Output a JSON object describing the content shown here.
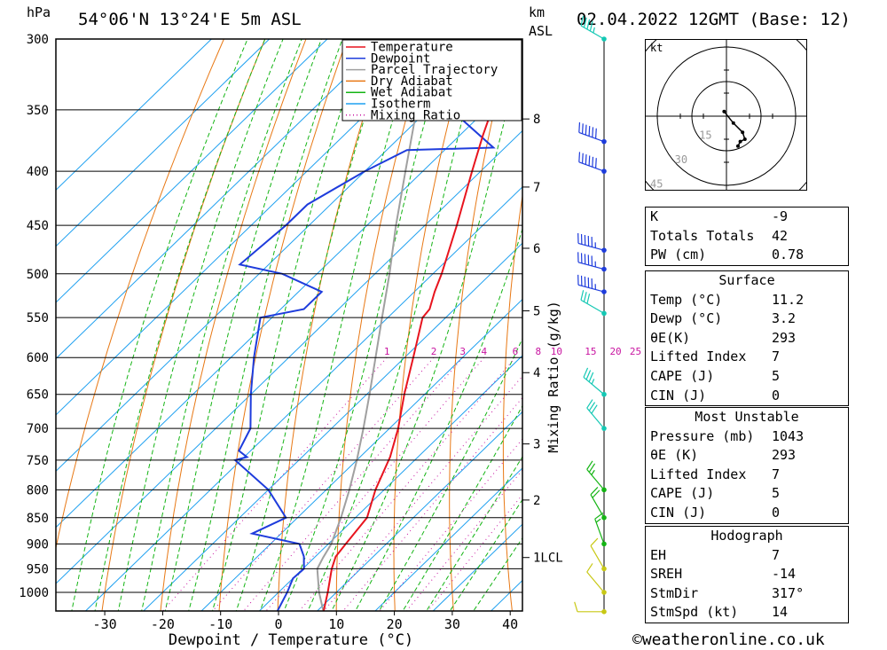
{
  "header": {
    "location": "54°06'N 13°24'E 5m ASL",
    "datetime": "02.04.2022 12GMT (Base: 12)",
    "pressure_unit": "hPa",
    "height_unit": "km",
    "height_unit2": "ASL"
  },
  "chart_data": {
    "type": "skew-t",
    "xlabel": "Dewpoint / Temperature (°C)",
    "ylabel": "Mixing Ratio (g/kg)",
    "x_ticks": [
      -30,
      -20,
      -10,
      0,
      10,
      20,
      30,
      40
    ],
    "pressure_levels": [
      300,
      350,
      400,
      450,
      500,
      550,
      600,
      650,
      700,
      750,
      800,
      850,
      900,
      950,
      1000
    ],
    "km_ticks": [
      {
        "label": "8",
        "p": 357
      },
      {
        "label": "7",
        "p": 414
      },
      {
        "label": "6",
        "p": 473
      },
      {
        "label": "5",
        "p": 542
      },
      {
        "label": "4",
        "p": 620
      },
      {
        "label": "3",
        "p": 724
      },
      {
        "label": "2",
        "p": 818
      },
      {
        "label": "1LCL",
        "p": 927
      }
    ],
    "mixing_ratio_labels": [
      "1",
      "2",
      "3",
      "4",
      "6",
      "8",
      "10",
      "15",
      "20",
      "25"
    ],
    "legend": [
      "Temperature",
      "Dewpoint",
      "Parcel Trajectory",
      "Dry Adiabat",
      "Wet Adiabat",
      "Isotherm",
      "Mixing Ratio"
    ],
    "colors": {
      "temperature": "#e8141e",
      "dewpoint": "#1e3cdc",
      "parcel": "#a0a0a0",
      "dry_adiabat": "#e87814",
      "wet_adiabat": "#14b414",
      "isotherm": "#1ea0f0",
      "mixing_ratio": "#c814a0"
    },
    "series": [
      {
        "name": "Temperature",
        "points": [
          [
            1043,
            11.2
          ],
          [
            1000,
            8.5
          ],
          [
            950,
            5.0
          ],
          [
            925,
            3.5
          ],
          [
            900,
            3.0
          ],
          [
            850,
            2.0
          ],
          [
            800,
            -1.5
          ],
          [
            750,
            -4.5
          ],
          [
            745,
            -4.8
          ],
          [
            700,
            -8.5
          ],
          [
            650,
            -13.5
          ],
          [
            600,
            -18.5
          ],
          [
            550,
            -24.0
          ],
          [
            540,
            -24.3
          ],
          [
            520,
            -26.5
          ],
          [
            500,
            -28.5
          ],
          [
            450,
            -34.5
          ],
          [
            400,
            -41.5
          ],
          [
            370,
            -46.0
          ],
          [
            350,
            -49.0
          ],
          [
            300,
            -56.5
          ]
        ]
      },
      {
        "name": "Dewpoint",
        "points": [
          [
            1043,
            3.2
          ],
          [
            1000,
            1.5
          ],
          [
            970,
            0.0
          ],
          [
            950,
            0.2
          ],
          [
            925,
            -2.0
          ],
          [
            900,
            -5.0
          ],
          [
            880,
            -15.0
          ],
          [
            850,
            -12.0
          ],
          [
            800,
            -20.0
          ],
          [
            750,
            -31.0
          ],
          [
            745,
            -29.5
          ],
          [
            735,
            -32.0
          ],
          [
            700,
            -34.0
          ],
          [
            650,
            -40.0
          ],
          [
            600,
            -46.0
          ],
          [
            550,
            -52.0
          ],
          [
            540,
            -46.0
          ],
          [
            520,
            -46.0
          ],
          [
            500,
            -56.0
          ],
          [
            490,
            -65.0
          ],
          [
            450,
            -64.0
          ],
          [
            430,
            -64.0
          ],
          [
            400,
            -60.0
          ],
          [
            382,
            -56.5
          ],
          [
            380,
            -42.0
          ],
          [
            350,
            -56.0
          ],
          [
            300,
            -66.5
          ]
        ]
      },
      {
        "name": "Parcel Trajectory",
        "points": [
          [
            1043,
            11.2
          ],
          [
            1000,
            7.0
          ],
          [
            950,
            2.5
          ],
          [
            927,
            1.5
          ],
          [
            900,
            0.5
          ],
          [
            850,
            -2.5
          ],
          [
            800,
            -6.0
          ],
          [
            750,
            -10.0
          ],
          [
            700,
            -14.5
          ],
          [
            650,
            -19.5
          ],
          [
            600,
            -25.0
          ],
          [
            550,
            -31.0
          ],
          [
            500,
            -37.5
          ],
          [
            450,
            -45.0
          ],
          [
            400,
            -53.0
          ],
          [
            350,
            -62.0
          ],
          [
            300,
            -72.0
          ]
        ]
      }
    ],
    "wind_barbs": [
      {
        "p": 300,
        "dir": 300,
        "kt": 45
      },
      {
        "p": 375,
        "dir": 290,
        "kt": 60
      },
      {
        "p": 400,
        "dir": 290,
        "kt": 60
      },
      {
        "p": 475,
        "dir": 285,
        "kt": 55
      },
      {
        "p": 495,
        "dir": 285,
        "kt": 55
      },
      {
        "p": 520,
        "dir": 285,
        "kt": 55
      },
      {
        "p": 545,
        "dir": 300,
        "kt": 30
      },
      {
        "p": 650,
        "dir": 310,
        "kt": 35
      },
      {
        "p": 700,
        "dir": 320,
        "kt": 30
      },
      {
        "p": 800,
        "dir": 320,
        "kt": 25
      },
      {
        "p": 850,
        "dir": 330,
        "kt": 20
      },
      {
        "p": 900,
        "dir": 340,
        "kt": 15
      },
      {
        "p": 950,
        "dir": 330,
        "kt": 10
      },
      {
        "p": 1000,
        "dir": 320,
        "kt": 10
      },
      {
        "p": 1043,
        "dir": 270,
        "kt": 10
      }
    ],
    "hodograph": {
      "unit": "kt",
      "ring_labels": [
        "15",
        "30",
        "45"
      ],
      "points": [
        [
          -1,
          2
        ],
        [
          3,
          -3
        ],
        [
          7,
          -7
        ],
        [
          8,
          -10
        ],
        [
          6,
          -11
        ],
        [
          5,
          -13
        ]
      ]
    },
    "stats": {
      "indices": [
        {
          "label": "K",
          "value": "-9"
        },
        {
          "label": "Totals Totals",
          "value": "42"
        },
        {
          "label": "PW (cm)",
          "value": "0.78"
        }
      ],
      "surface_title": "Surface",
      "surface": [
        {
          "label": "Temp (°C)",
          "value": "11.2"
        },
        {
          "label": "Dewp (°C)",
          "value": "3.2"
        },
        {
          "label": "θE(K)",
          "value": "293"
        },
        {
          "label": "Lifted Index",
          "value": "7"
        },
        {
          "label": "CAPE (J)",
          "value": "5"
        },
        {
          "label": "CIN (J)",
          "value": "0"
        }
      ],
      "most_unstable_title": "Most Unstable",
      "most_unstable": [
        {
          "label": "Pressure (mb)",
          "value": "1043"
        },
        {
          "label": "θE (K)",
          "value": "293"
        },
        {
          "label": "Lifted Index",
          "value": "7"
        },
        {
          "label": "CAPE (J)",
          "value": "5"
        },
        {
          "label": "CIN (J)",
          "value": "0"
        }
      ],
      "hodograph_title": "Hodograph",
      "hodograph": [
        {
          "label": "EH",
          "value": "7"
        },
        {
          "label": "SREH",
          "value": "-14"
        },
        {
          "label": "StmDir",
          "value": "317°"
        },
        {
          "label": "StmSpd (kt)",
          "value": "14"
        }
      ]
    }
  },
  "footer": "©weatheronline.co.uk"
}
